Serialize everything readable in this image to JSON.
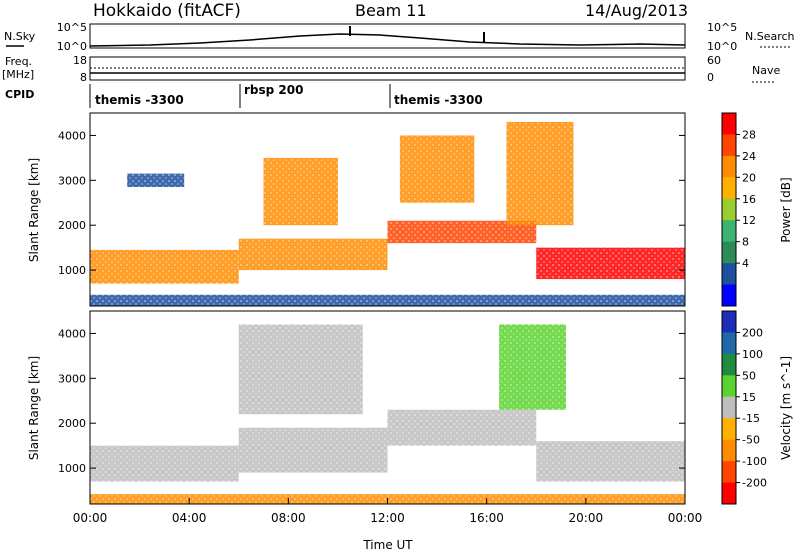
{
  "header": {
    "station": "Hokkaido (fitACF)",
    "beam": "Beam 11",
    "date": "14/Aug/2013"
  },
  "left_labels": {
    "nsky": "N.Sky",
    "freq": "Freq.",
    "freq_unit": "[MHz]",
    "cpid": "CPID"
  },
  "right_labels": {
    "nsearch": "N.Search",
    "nave": "Nave"
  },
  "noise_panel": {
    "left_ticks": [
      "10^5",
      "10^0"
    ],
    "right_ticks": [
      "10^5",
      "10^0"
    ]
  },
  "freq_panel": {
    "left_ticks": [
      "18",
      "8"
    ],
    "right_ticks": [
      "60",
      "0"
    ]
  },
  "cpid_segments": [
    {
      "label": "themis -3300",
      "start_hour": 0
    },
    {
      "label": "rbsp 200",
      "start_hour": 6
    },
    {
      "label": "themis -3300",
      "start_hour": 12
    }
  ],
  "chart_data": [
    {
      "type": "heatmap",
      "quantity": "Power",
      "ylabel": "Slant Range [km]",
      "xlim_hours": [
        0,
        24
      ],
      "ylim": [
        200,
        4500
      ],
      "y_ticks": [
        1000,
        2000,
        3000,
        4000
      ],
      "colorbar": {
        "label": "Power [dB]",
        "ticks": [
          28,
          24,
          20,
          16,
          12,
          8,
          4
        ],
        "colors": [
          "#ff0000",
          "#ff4500",
          "#ff8c00",
          "#ffb000",
          "#9acd32",
          "#3cb371",
          "#2e8b57",
          "#1e50a0",
          "#0000ff"
        ]
      },
      "bands": [
        {
          "x0": 0,
          "x1": 24,
          "y0": 200,
          "y1": 450,
          "color": "#1e50a0"
        },
        {
          "x0": 0,
          "x1": 6,
          "y0": 700,
          "y1": 1450,
          "color": "#ff8c00"
        },
        {
          "x0": 6,
          "x1": 12,
          "y0": 1000,
          "y1": 1700,
          "color": "#ff8c00"
        },
        {
          "x0": 12,
          "x1": 18,
          "y0": 1600,
          "y1": 2100,
          "color": "#ff4500"
        },
        {
          "x0": 18,
          "x1": 24,
          "y0": 800,
          "y1": 1500,
          "color": "#ff0000"
        },
        {
          "x0": 1.5,
          "x1": 3.8,
          "y0": 2850,
          "y1": 3150,
          "color": "#1e50a0"
        },
        {
          "x0": 7,
          "x1": 10,
          "y0": 2000,
          "y1": 3500,
          "color": "#ff8c00"
        },
        {
          "x0": 12.5,
          "x1": 15.5,
          "y0": 2500,
          "y1": 4000,
          "color": "#ff8c00"
        },
        {
          "x0": 16.8,
          "x1": 19.5,
          "y0": 2000,
          "y1": 4300,
          "color": "#ff8c00"
        }
      ]
    },
    {
      "type": "heatmap",
      "quantity": "Velocity",
      "ylabel": "Slant Range [km]",
      "xlabel": "Time UT",
      "xlim_hours": [
        0,
        24
      ],
      "ylim": [
        200,
        4500
      ],
      "y_ticks": [
        1000,
        2000,
        3000,
        4000
      ],
      "x_ticks": [
        "00:00",
        "04:00",
        "08:00",
        "12:00",
        "16:00",
        "20:00",
        "00:00"
      ],
      "x_tick_hours": [
        0,
        4,
        8,
        12,
        16,
        20,
        24
      ],
      "colorbar": {
        "label": "Velocity [m s^-1]",
        "ticks": [
          200,
          100,
          50,
          15,
          -15,
          -50,
          -100,
          -200
        ],
        "colors": [
          "#1c2db8",
          "#1e6aa8",
          "#1e8c3c",
          "#5bd22f",
          "#bebebe",
          "#ffb000",
          "#ff8c00",
          "#ff4500",
          "#ff0000"
        ]
      },
      "bands": [
        {
          "x0": 0,
          "x1": 24,
          "y0": 200,
          "y1": 420,
          "color": "#ff8c00"
        },
        {
          "x0": 0,
          "x1": 6,
          "y0": 700,
          "y1": 1500,
          "color": "#bebebe"
        },
        {
          "x0": 6,
          "x1": 12,
          "y0": 900,
          "y1": 1900,
          "color": "#bebebe"
        },
        {
          "x0": 12,
          "x1": 18,
          "y0": 1500,
          "y1": 2300,
          "color": "#bebebe"
        },
        {
          "x0": 18,
          "x1": 24,
          "y0": 700,
          "y1": 1600,
          "color": "#bebebe"
        },
        {
          "x0": 6,
          "x1": 11,
          "y0": 2200,
          "y1": 4200,
          "color": "#bebebe"
        },
        {
          "x0": 16.5,
          "x1": 19.2,
          "y0": 2300,
          "y1": 4200,
          "color": "#5bd22f"
        }
      ]
    }
  ]
}
